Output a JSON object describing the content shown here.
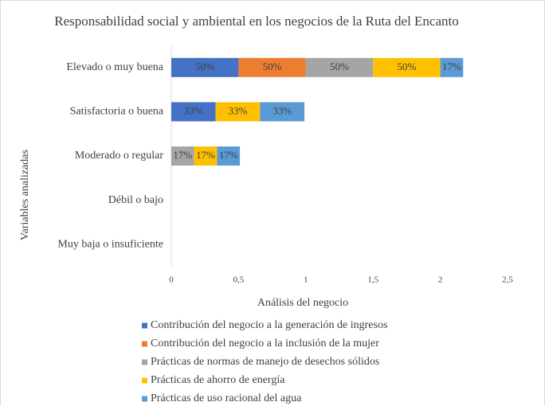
{
  "chart_data": {
    "type": "stacked-barh",
    "title": "Responsabilidad social y ambiental en los negocios de la Ruta del Encanto",
    "xlabel": "Análisis del negocio",
    "ylabel": "Variables analizadas",
    "categories": [
      "Elevado o muy buena",
      "Satisfactoria o buena",
      "Moderado o regular",
      "Débil o bajo",
      "Muy baja o insuficiente"
    ],
    "series": [
      {
        "name": "Contribución del negocio a la generación de ingresos",
        "color": "#4472c4",
        "values": [
          0.5,
          0.33,
          null,
          null,
          null
        ],
        "value_labels": [
          "50%",
          "33%",
          null,
          null,
          null
        ]
      },
      {
        "name": "Contribución del negocio a la inclusión de la mujer",
        "color": "#ed7d31",
        "values": [
          0.5,
          null,
          null,
          null,
          null
        ],
        "value_labels": [
          "50%",
          null,
          null,
          null,
          null
        ]
      },
      {
        "name": "Prácticas de normas de manejo de desechos sólidos",
        "color": "#a5a5a5",
        "values": [
          0.5,
          null,
          0.17,
          null,
          null
        ],
        "value_labels": [
          "50%",
          null,
          "17%",
          null,
          null
        ]
      },
      {
        "name": "Prácticas de ahorro de energía",
        "color": "#ffc000",
        "values": [
          0.5,
          0.33,
          0.17,
          null,
          null
        ],
        "value_labels": [
          "50%",
          "33%",
          "17%",
          null,
          null
        ]
      },
      {
        "name": "Prácticas de uso racional del agua",
        "color": "#5b9bd5",
        "values": [
          0.17,
          0.33,
          0.17,
          null,
          null
        ],
        "value_labels": [
          "17%",
          "33%",
          "17%",
          null,
          null
        ]
      }
    ],
    "xlim": [
      0,
      2.5
    ],
    "xticks": [
      0,
      {
        "value": 0.5,
        "label": "0,5"
      },
      1,
      {
        "value": 1.5,
        "label": "1,5"
      },
      2,
      {
        "value": 2.5,
        "label": "2,5"
      }
    ],
    "legend": "bottom"
  }
}
